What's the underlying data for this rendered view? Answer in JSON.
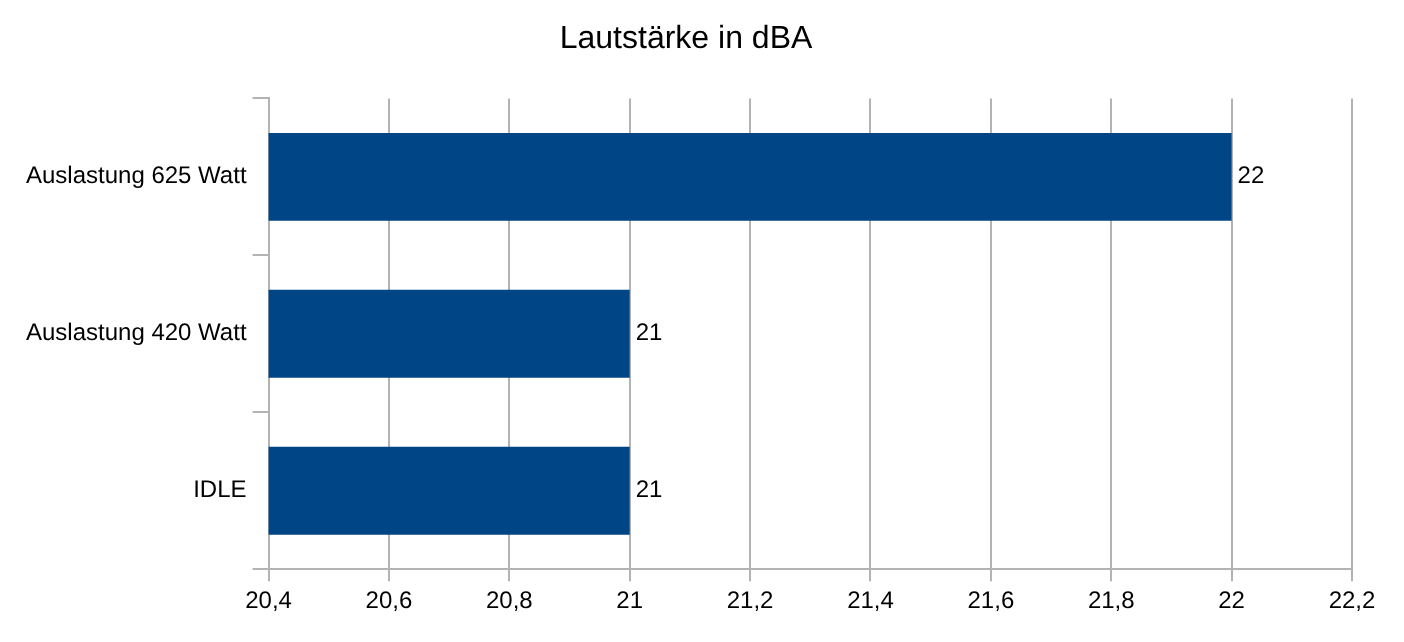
{
  "chart_data": {
    "type": "bar",
    "orientation": "horizontal",
    "title": "Lautstärke in dBA",
    "categories": [
      "Auslastung 625 Watt",
      "Auslastung 420 Watt",
      "IDLE"
    ],
    "values": [
      22,
      21,
      21
    ],
    "color": "#004586",
    "xlim": [
      20.4,
      22.2
    ],
    "xticks": [
      {
        "value": 20.4,
        "label": "20,4"
      },
      {
        "value": 20.6,
        "label": "20,6"
      },
      {
        "value": 20.8,
        "label": "20,8"
      },
      21,
      {
        "value": 21.2,
        "label": "21,2"
      },
      {
        "value": 21.4,
        "label": "21,4"
      },
      {
        "value": 21.6,
        "label": "21,6"
      },
      {
        "value": 21.8,
        "label": "21,8"
      },
      22,
      {
        "value": 22.2,
        "label": "22,2"
      }
    ],
    "grid": "x",
    "legend": false,
    "data_labels": true
  }
}
